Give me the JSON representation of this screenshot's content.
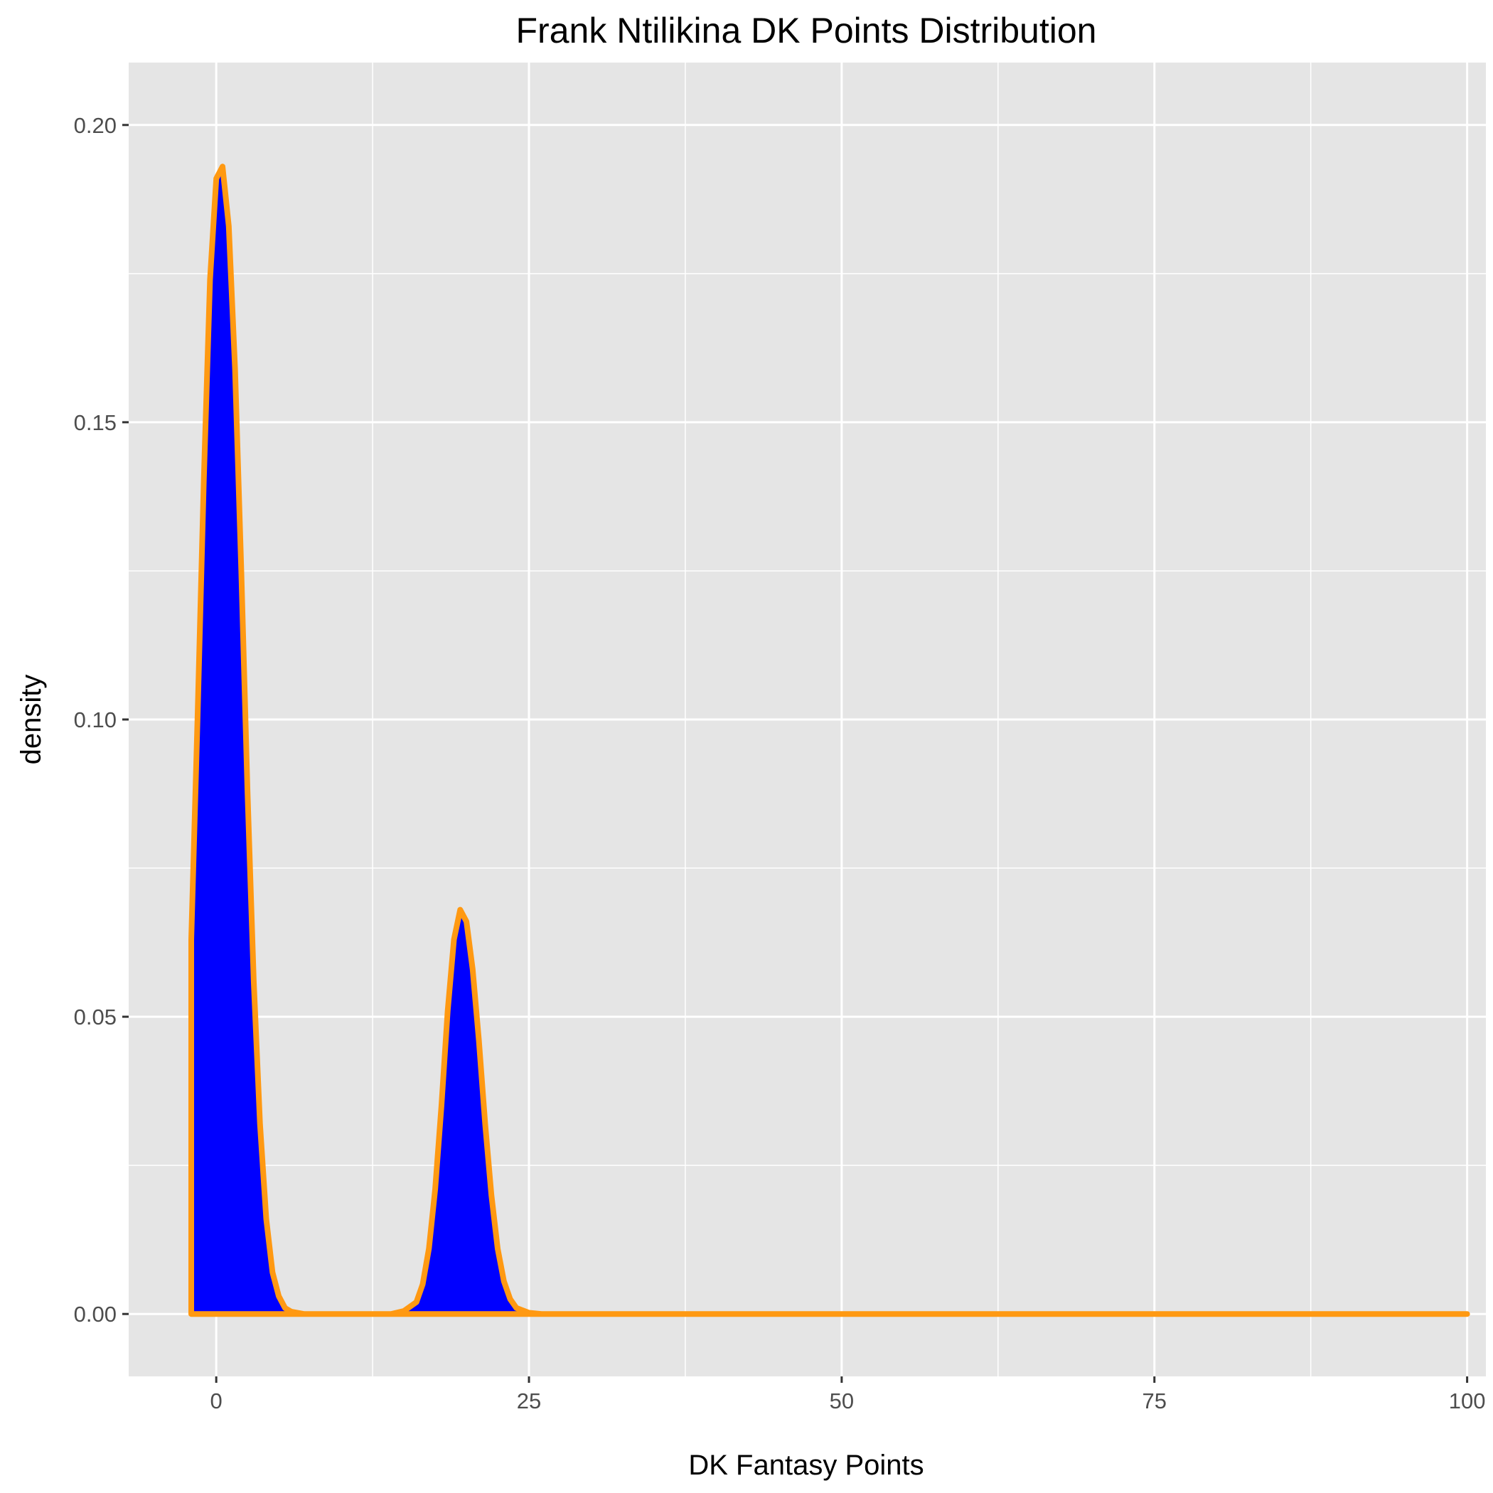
{
  "chart_data": {
    "type": "area",
    "title": "Frank Ntilikina DK Points Distribution",
    "xlabel": "DK Fantasy Points",
    "ylabel": "density",
    "xlim": [
      -7,
      101.5
    ],
    "ylim": [
      -0.0105,
      0.2105
    ],
    "x_ticks": [
      0,
      25,
      50,
      75,
      100
    ],
    "x_tick_labels": [
      "0",
      "25",
      "50",
      "75",
      "100"
    ],
    "y_ticks": [
      0,
      0.05,
      0.1,
      0.15,
      0.2
    ],
    "y_tick_labels": [
      "0.00",
      "0.05",
      "0.10",
      "0.15",
      "0.20"
    ],
    "grid": true,
    "background": "#e5e5e5",
    "fill_color": "#0000ff",
    "line_color": "#ff9912",
    "series": [
      {
        "x": [
          -2,
          -1.5,
          -1,
          -0.5,
          0,
          0.5,
          1,
          1.5,
          2,
          2.5,
          3,
          3.5,
          4,
          4.5,
          5,
          5.5,
          6,
          7,
          8,
          10,
          12,
          14,
          15,
          16,
          16.5,
          17,
          17.5,
          18,
          18.5,
          19,
          19.5,
          20,
          20.5,
          21,
          21.5,
          22,
          22.5,
          23,
          23.5,
          24,
          25,
          26,
          30,
          40,
          50,
          60,
          70,
          80,
          90,
          100
        ],
        "y": [
          0.063,
          0.1,
          0.14,
          0.174,
          0.191,
          0.193,
          0.183,
          0.159,
          0.125,
          0.088,
          0.056,
          0.032,
          0.016,
          0.007,
          0.003,
          0.001,
          0.0004,
          0.0,
          0.0,
          0.0,
          0.0,
          0.0,
          0.0005,
          0.002,
          0.005,
          0.011,
          0.021,
          0.035,
          0.051,
          0.063,
          0.068,
          0.066,
          0.058,
          0.046,
          0.032,
          0.02,
          0.011,
          0.0055,
          0.0025,
          0.001,
          0.0002,
          0.0,
          0.0,
          0.0,
          0.0,
          0.0,
          0.0,
          0.0,
          0.0,
          0.0
        ]
      }
    ]
  }
}
